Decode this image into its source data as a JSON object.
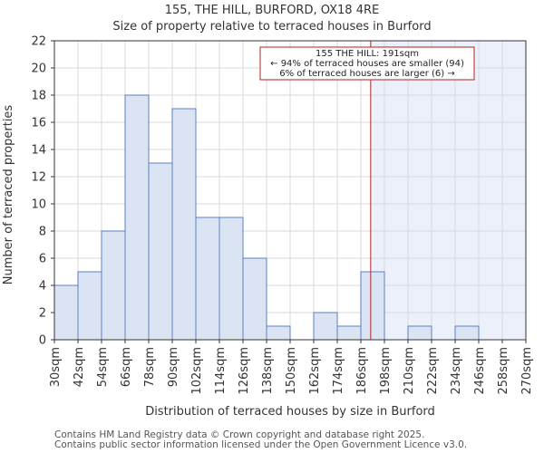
{
  "header": {
    "title": "155, THE HILL, BURFORD, OX18 4RE",
    "subtitle": "Size of property relative to terraced houses in Burford"
  },
  "footer": {
    "line1": "Contains HM Land Registry data © Crown copyright and database right 2025.",
    "line2": "Contains public sector information licensed under the Open Government Licence v3.0."
  },
  "colors": {
    "bar_fill": "#dbe4f3",
    "bar_stroke": "#5b7fc1",
    "highlight_region": "#ebf0fa",
    "marker_line": "#b22222",
    "grid": "#d9d9d9"
  },
  "chart_data": {
    "type": "bar",
    "title": "Size of property relative to terraced houses in Burford",
    "xlabel": "Distribution of terraced houses by size in Burford",
    "ylabel": "Number of terraced properties",
    "bin_edges": [
      30,
      42,
      54,
      66,
      78,
      90,
      102,
      114,
      126,
      138,
      150,
      162,
      174,
      186,
      198,
      210,
      222,
      234,
      246,
      258,
      270
    ],
    "tick_labels": [
      "30sqm",
      "42sqm",
      "54sqm",
      "66sqm",
      "78sqm",
      "90sqm",
      "102sqm",
      "114sqm",
      "126sqm",
      "138sqm",
      "150sqm",
      "162sqm",
      "174sqm",
      "186sqm",
      "198sqm",
      "210sqm",
      "222sqm",
      "234sqm",
      "246sqm",
      "258sqm",
      "270sqm"
    ],
    "values": [
      4,
      5,
      8,
      18,
      13,
      17,
      9,
      9,
      6,
      1,
      0,
      2,
      1,
      5,
      0,
      1,
      0,
      1,
      0,
      0
    ],
    "ylim": [
      0,
      22
    ],
    "yticks": [
      0,
      2,
      4,
      6,
      8,
      10,
      12,
      14,
      16,
      18,
      20,
      22
    ],
    "xlim": [
      30,
      270
    ],
    "grid": true,
    "marker": {
      "value": 191,
      "lines": [
        "155 THE HILL: 191sqm",
        "← 94% of terraced houses are smaller (94)",
        "6% of terraced houses are larger (6) →"
      ]
    }
  }
}
